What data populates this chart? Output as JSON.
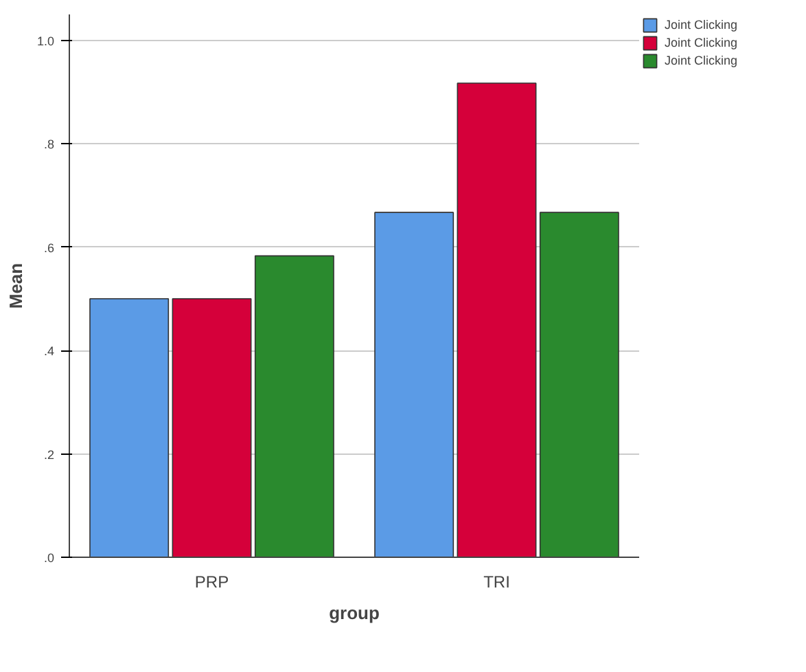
{
  "chart_data": {
    "type": "bar",
    "xlabel": "group",
    "ylabel": "Mean",
    "categories": [
      "PRP",
      "TRI"
    ],
    "series": [
      {
        "name": "Joint Clicking",
        "color": "#5b9be6",
        "values": [
          0.5,
          0.667
        ]
      },
      {
        "name": "Joint Clicking",
        "color": "#d5003a",
        "values": [
          0.5,
          0.917
        ]
      },
      {
        "name": "Joint Clicking",
        "color": "#2a8a2e",
        "values": [
          0.583,
          0.667
        ]
      }
    ],
    "ylim": [
      0,
      1.05
    ],
    "yticks": [
      {
        "value": 0,
        "label": ".0"
      },
      {
        "value": 0.2,
        "label": ".2"
      },
      {
        "value": 0.4,
        "label": ".4"
      },
      {
        "value": 0.6,
        "label": ".6"
      },
      {
        "value": 0.8,
        "label": ".8"
      },
      {
        "value": 1.0,
        "label": "1.0"
      }
    ],
    "grid": "y",
    "legend": "top right"
  }
}
